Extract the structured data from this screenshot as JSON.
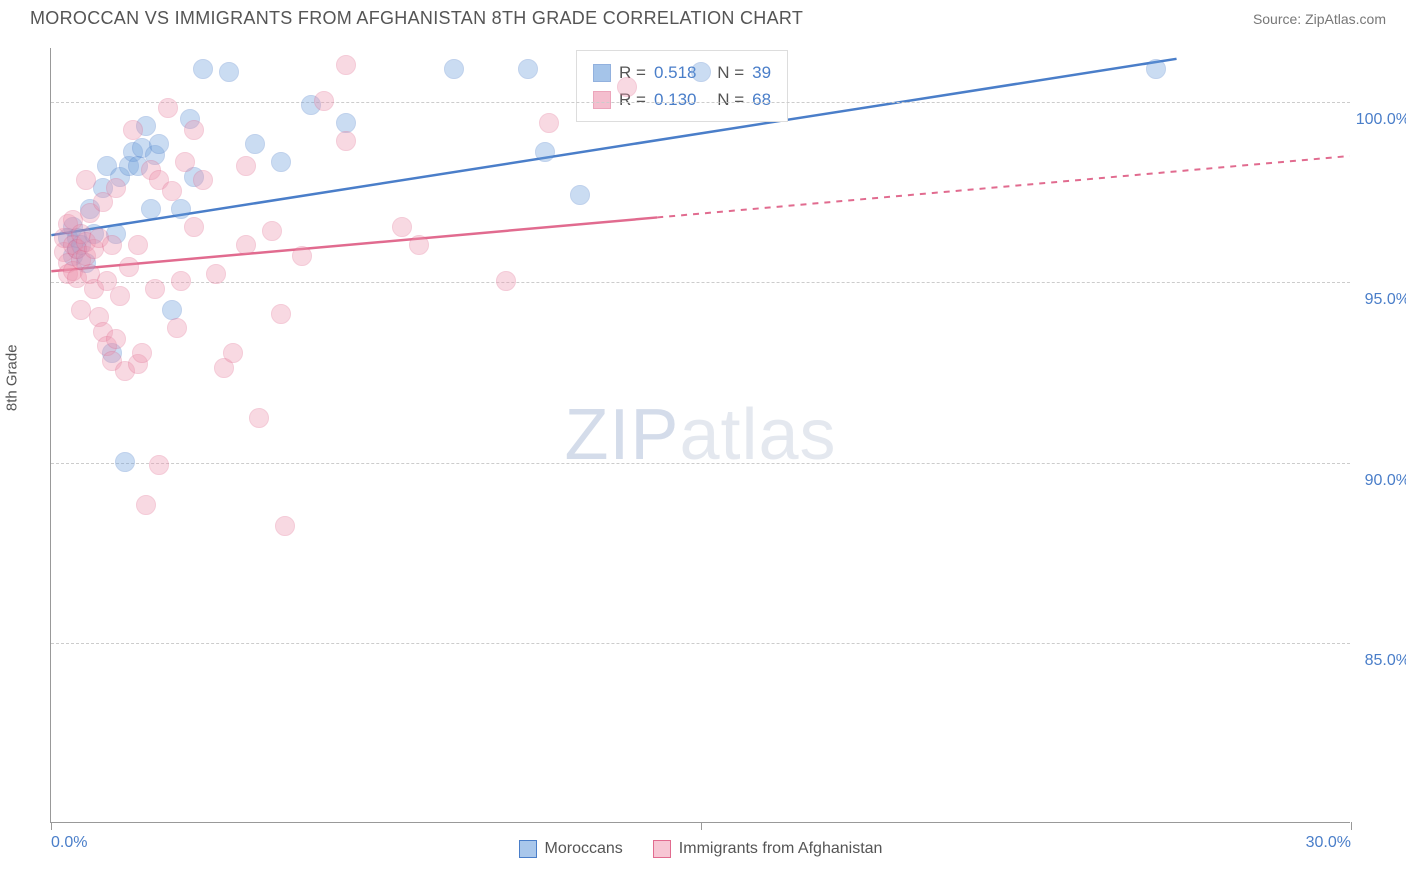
{
  "header": {
    "title": "MOROCCAN VS IMMIGRANTS FROM AFGHANISTAN 8TH GRADE CORRELATION CHART",
    "source": "Source: ZipAtlas.com"
  },
  "chart": {
    "type": "scatter",
    "ylabel": "8th Grade",
    "watermark_zip": "ZIP",
    "watermark_atlas": "atlas",
    "background_color": "#ffffff",
    "grid_color": "#cccccc",
    "axis_color": "#999999",
    "xlim": [
      0,
      30
    ],
    "ylim": [
      80,
      101.5
    ],
    "xticks": [
      {
        "v": 0,
        "label": "0.0%"
      },
      {
        "v": 15,
        "label": ""
      },
      {
        "v": 30,
        "label": "30.0%"
      }
    ],
    "yticks": [
      {
        "v": 85,
        "label": "85.0%"
      },
      {
        "v": 90,
        "label": "90.0%"
      },
      {
        "v": 95,
        "label": "95.0%"
      },
      {
        "v": 100,
        "label": "100.0%"
      }
    ],
    "series": [
      {
        "name": "Moroccans",
        "color": "#6b9edb",
        "stroke": "#4a7ec9",
        "fill_opacity": 0.35,
        "marker_radius": 10,
        "R_label": "R =",
        "R": "0.518",
        "N_label": "N =",
        "N": "39",
        "trend": {
          "x1": 0,
          "y1": 96.3,
          "x2": 26,
          "y2": 101.2,
          "dashed_from": null
        },
        "points": [
          [
            0.4,
            96.2
          ],
          [
            0.5,
            95.7
          ],
          [
            0.5,
            96.5
          ],
          [
            0.6,
            95.9
          ],
          [
            0.6,
            96.2
          ],
          [
            0.7,
            96.0
          ],
          [
            0.8,
            95.5
          ],
          [
            0.9,
            97.0
          ],
          [
            1.0,
            96.3
          ],
          [
            1.2,
            97.6
          ],
          [
            1.3,
            98.2
          ],
          [
            1.4,
            93.0
          ],
          [
            1.5,
            96.3
          ],
          [
            1.6,
            97.9
          ],
          [
            1.7,
            90.0
          ],
          [
            1.8,
            98.2
          ],
          [
            1.9,
            98.6
          ],
          [
            2.0,
            98.2
          ],
          [
            2.1,
            98.7
          ],
          [
            2.2,
            99.3
          ],
          [
            2.3,
            97.0
          ],
          [
            2.4,
            98.5
          ],
          [
            2.5,
            98.8
          ],
          [
            2.8,
            94.2
          ],
          [
            3.0,
            97.0
          ],
          [
            3.2,
            99.5
          ],
          [
            3.3,
            97.9
          ],
          [
            3.5,
            100.9
          ],
          [
            4.1,
            100.8
          ],
          [
            4.7,
            98.8
          ],
          [
            5.3,
            98.3
          ],
          [
            6.0,
            99.9
          ],
          [
            6.8,
            99.4
          ],
          [
            9.3,
            100.9
          ],
          [
            11.0,
            100.9
          ],
          [
            11.4,
            98.6
          ],
          [
            12.2,
            97.4
          ],
          [
            15.0,
            100.8
          ],
          [
            25.5,
            100.9
          ]
        ]
      },
      {
        "name": "Immigrants from Afghanistan",
        "color": "#ed94ae",
        "stroke": "#e16b8f",
        "fill_opacity": 0.35,
        "marker_radius": 10,
        "R_label": "R =",
        "R": "0.130",
        "N_label": "N =",
        "N": "68",
        "trend": {
          "x1": 0,
          "y1": 95.3,
          "x2": 30,
          "y2": 98.5,
          "dashed_from": 14
        },
        "points": [
          [
            0.3,
            95.8
          ],
          [
            0.3,
            96.2
          ],
          [
            0.4,
            95.5
          ],
          [
            0.4,
            96.6
          ],
          [
            0.4,
            95.2
          ],
          [
            0.5,
            96.0
          ],
          [
            0.5,
            95.3
          ],
          [
            0.5,
            96.7
          ],
          [
            0.6,
            95.9
          ],
          [
            0.6,
            95.1
          ],
          [
            0.7,
            96.3
          ],
          [
            0.7,
            95.6
          ],
          [
            0.7,
            94.2
          ],
          [
            0.8,
            95.7
          ],
          [
            0.8,
            97.8
          ],
          [
            0.8,
            96.1
          ],
          [
            0.9,
            95.2
          ],
          [
            0.9,
            96.9
          ],
          [
            1.0,
            94.8
          ],
          [
            1.0,
            95.9
          ],
          [
            1.1,
            94.0
          ],
          [
            1.1,
            96.2
          ],
          [
            1.2,
            93.6
          ],
          [
            1.2,
            97.2
          ],
          [
            1.3,
            93.2
          ],
          [
            1.3,
            95.0
          ],
          [
            1.4,
            92.8
          ],
          [
            1.4,
            96.0
          ],
          [
            1.5,
            93.4
          ],
          [
            1.5,
            97.6
          ],
          [
            1.6,
            94.6
          ],
          [
            1.7,
            92.5
          ],
          [
            1.8,
            95.4
          ],
          [
            1.9,
            99.2
          ],
          [
            2.0,
            96.0
          ],
          [
            2.0,
            92.7
          ],
          [
            2.1,
            93.0
          ],
          [
            2.2,
            88.8
          ],
          [
            2.3,
            98.1
          ],
          [
            2.4,
            94.8
          ],
          [
            2.5,
            89.9
          ],
          [
            2.5,
            97.8
          ],
          [
            2.7,
            99.8
          ],
          [
            2.8,
            97.5
          ],
          [
            2.9,
            93.7
          ],
          [
            3.0,
            95.0
          ],
          [
            3.1,
            98.3
          ],
          [
            3.3,
            99.2
          ],
          [
            3.3,
            96.5
          ],
          [
            3.5,
            97.8
          ],
          [
            3.8,
            95.2
          ],
          [
            4.0,
            92.6
          ],
          [
            4.2,
            93.0
          ],
          [
            4.5,
            96.0
          ],
          [
            4.5,
            98.2
          ],
          [
            4.8,
            91.2
          ],
          [
            5.1,
            96.4
          ],
          [
            5.3,
            94.1
          ],
          [
            5.4,
            88.2
          ],
          [
            5.8,
            95.7
          ],
          [
            6.3,
            100.0
          ],
          [
            6.8,
            98.9
          ],
          [
            6.8,
            101.0
          ],
          [
            8.1,
            96.5
          ],
          [
            8.5,
            96.0
          ],
          [
            10.5,
            95.0
          ],
          [
            11.5,
            99.4
          ],
          [
            13.3,
            100.4
          ]
        ]
      }
    ],
    "bottom_legend": [
      {
        "label": "Moroccans",
        "fill": "#a9c7eb",
        "stroke": "#4a7ec9"
      },
      {
        "label": "Immigrants from Afghanistan",
        "fill": "#f7c6d4",
        "stroke": "#e16b8f"
      }
    ]
  }
}
